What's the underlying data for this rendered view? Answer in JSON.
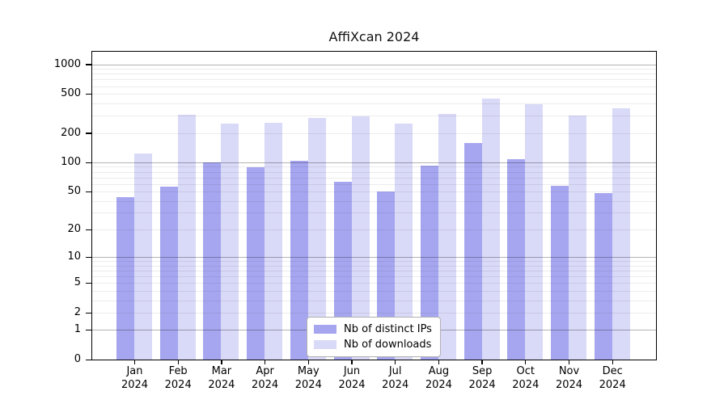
{
  "chart_data": {
    "type": "bar",
    "title": "AffiXcan 2024",
    "categories": [
      "Jan",
      "Feb",
      "Mar",
      "Apr",
      "May",
      "Jun",
      "Jul",
      "Aug",
      "Sep",
      "Oct",
      "Nov",
      "Dec"
    ],
    "x_tick_second_line": "2024",
    "series": [
      {
        "name": "Nb of distinct IPs",
        "color": "#a6a6f0",
        "values": [
          44,
          56,
          99,
          89,
          104,
          63,
          50,
          93,
          157,
          108,
          57,
          48
        ]
      },
      {
        "name": "Nb of downloads",
        "color": "#d9d9f8",
        "values": [
          124,
          305,
          248,
          252,
          284,
          295,
          247,
          313,
          448,
          392,
          301,
          356
        ]
      }
    ],
    "y_ticks": [
      0,
      1,
      2,
      5,
      10,
      20,
      50,
      100,
      200,
      500,
      1000
    ],
    "y_scale": "log1p",
    "ylim": [
      0,
      1340
    ],
    "grid": "on",
    "grid_major_at": [
      1,
      10,
      100,
      1000
    ],
    "legend_position": "lower center"
  },
  "colors": {
    "grid_minor": "#ececec",
    "grid_major": "#b3b3b3",
    "axis": "#000000",
    "legend_border": "#b0b0b0",
    "background": "#ffffff"
  }
}
